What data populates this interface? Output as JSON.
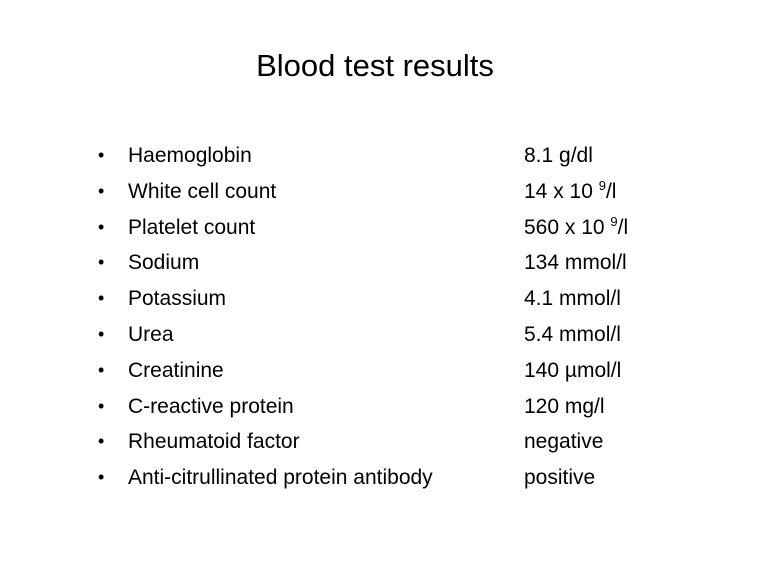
{
  "title": "Blood test results",
  "bullet_glyph": "•",
  "results": [
    {
      "name": "Haemoglobin",
      "value": "8.1 g/dl",
      "superscript": "",
      "unit_suffix": ""
    },
    {
      "name": "White cell count",
      "value": "14 x 10 ",
      "superscript": "9",
      "unit_suffix": "/l"
    },
    {
      "name": "Platelet count",
      "value": "560 x 10 ",
      "superscript": "9",
      "unit_suffix": "/l"
    },
    {
      "name": "Sodium",
      "value": "134 mmol/l",
      "superscript": "",
      "unit_suffix": ""
    },
    {
      "name": "Potassium",
      "value": "4.1 mmol/l",
      "superscript": "",
      "unit_suffix": ""
    },
    {
      "name": "Urea",
      "value": "5.4 mmol/l",
      "superscript": "",
      "unit_suffix": ""
    },
    {
      "name": "Creatinine",
      "value": "140 µmol/l",
      "superscript": "",
      "unit_suffix": ""
    },
    {
      "name": "C-reactive protein",
      "value": "120 mg/l",
      "superscript": "",
      "unit_suffix": ""
    },
    {
      "name": "Rheumatoid factor",
      "value": "negative",
      "superscript": "",
      "unit_suffix": ""
    },
    {
      "name": "Anti-citrullinated protein antibody",
      "value": "positive",
      "superscript": "",
      "unit_suffix": ""
    }
  ]
}
